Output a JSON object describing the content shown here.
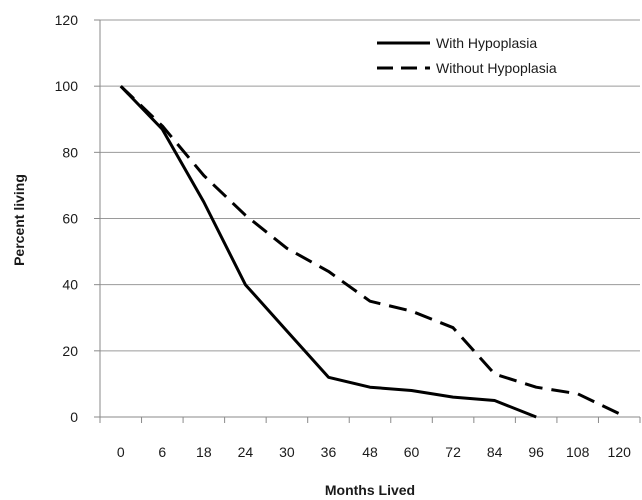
{
  "chart_data": {
    "type": "line",
    "title": "",
    "xlabel": "Months Lived",
    "ylabel": "Percent living",
    "categories": [
      "0",
      "6",
      "18",
      "24",
      "30",
      "36",
      "48",
      "60",
      "72",
      "84",
      "96",
      "108",
      "120"
    ],
    "ylim": [
      0,
      120
    ],
    "yticks": [
      "0",
      "20",
      "40",
      "60",
      "80",
      "100",
      "120"
    ],
    "grid": "horizontal",
    "legend_position": "top-right",
    "series": [
      {
        "name": "With Hypoplasia",
        "style": "solid",
        "color": "#000000",
        "values": [
          100,
          87,
          65,
          40,
          26,
          12,
          9,
          8,
          6,
          5,
          0,
          null,
          null
        ]
      },
      {
        "name": "Without Hypoplasia",
        "style": "dashed",
        "color": "#000000",
        "values": [
          100,
          88,
          73,
          61,
          51,
          44,
          35,
          32,
          27,
          13,
          9,
          7,
          1
        ]
      }
    ]
  }
}
